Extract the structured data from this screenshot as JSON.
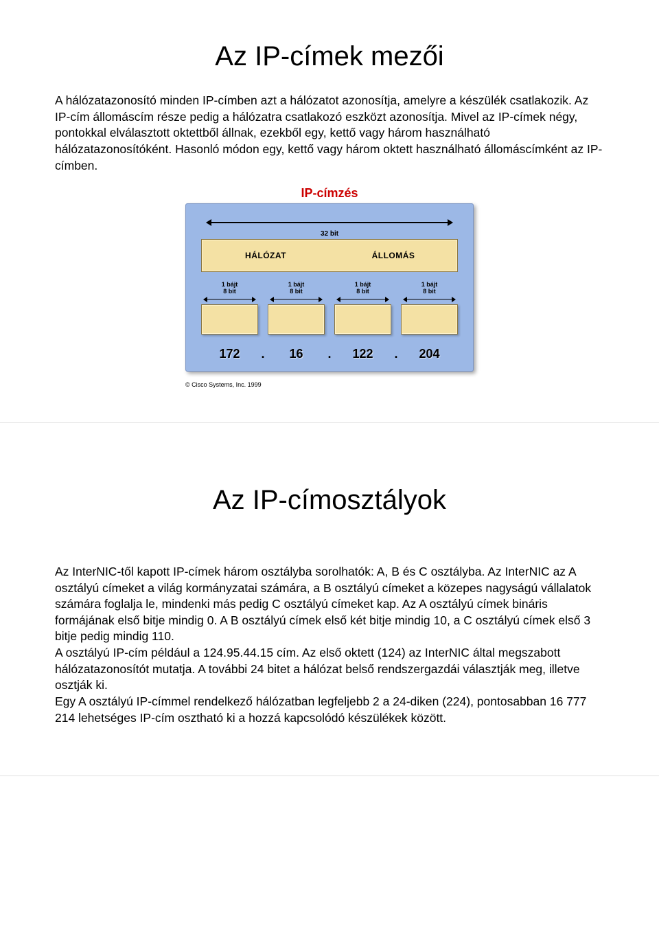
{
  "slide1": {
    "heading": "Az IP-címek mezői",
    "paragraph": "A hálózatazonosító minden IP-címben azt a hálózatot azonosítja, amelyre a készülék csatlakozik. Az IP-cím állomáscím része pedig a hálózatra csatlakozó eszközt azonosítja. Mivel az IP-címek négy, pontokkal elválasztott oktettből állnak, ezekből egy, kettő vagy három használható hálózatazonosítóként. Hasonló módon egy, kettő vagy három oktett használható állomáscímként az IP-címben.",
    "diagram": {
      "title": "IP-címzés",
      "width_label": "32 bit",
      "sections": [
        "HÁLÓZAT",
        "ÁLLOMÁS"
      ],
      "byte_label_top": "1 bájt",
      "byte_label_bottom": "8 bit",
      "ip_octets": [
        "172",
        "16",
        "122",
        "204"
      ],
      "panel_bg": "#9cb8e6",
      "box_fill": "#f4e1a4",
      "title_color": "#cc0000"
    },
    "copyright": "© Cisco Systems, Inc. 1999"
  },
  "slide2": {
    "heading": "Az IP-címosztályok",
    "p1": "Az InterNIC-től kapott IP-címek három osztályba sorolhatók: A, B és C osztályba. Az InterNIC az A osztályú címeket a világ kormányzatai számára, a B osztályú címeket a közepes nagyságú vállalatok számára foglalja le, mindenki más pedig C osztályú címeket kap. Az A osztályú címek bináris formájának első bitje mindig 0. A B osztályú címek első két bitje mindig 10, a C osztályú címek első 3 bitje pedig mindig 110.",
    "p2": "A osztályú IP-cím például a 124.95.44.15 cím. Az első oktett (124) az InterNIC által megszabott hálózatazonosítót mutatja. A további 24 bitet a hálózat belső rendszergazdái választják meg, illetve osztják ki.",
    "p3": "Egy A osztályú IP-címmel rendelkező hálózatban legfeljebb 2 a 24-diken (224), pontosabban 16 777 214 lehetséges IP-cím osztható ki a hozzá kapcsolódó készülékek között."
  }
}
